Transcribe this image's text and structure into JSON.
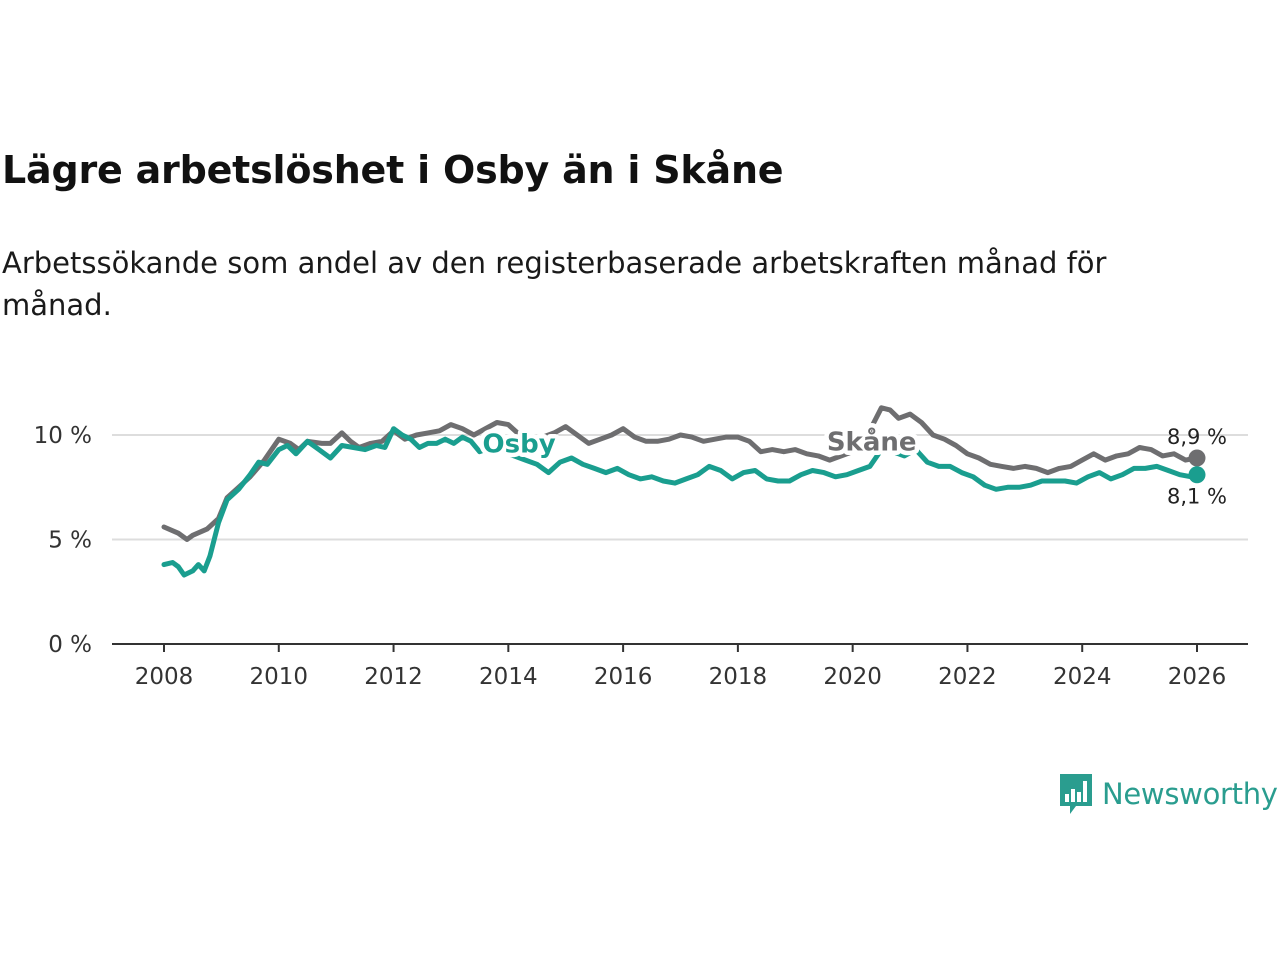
{
  "header": {
    "title": "Lägre arbetslöshet i Osby än i Skåne",
    "subtitle": "Arbetssökande som andel av den registerbaserade arbetskraften månad för månad."
  },
  "logo": {
    "text": "Newsworthy",
    "icon": "bar-chart-speech-bubble-icon"
  },
  "chart_data": {
    "type": "line",
    "title": "Lägre arbetslöshet i Osby än i Skåne",
    "subtitle": "Arbetssökande som andel av den registerbaserade arbetskraften månad för månad.",
    "xlabel": "",
    "ylabel": "",
    "xlim": [
      2007.3,
      2026.9
    ],
    "ylim": [
      0,
      10
    ],
    "x_ticks": [
      2008,
      2010,
      2012,
      2014,
      2016,
      2018,
      2020,
      2022,
      2024,
      2026
    ],
    "x_tick_labels": [
      "2008",
      "2010",
      "2012",
      "2014",
      "2016",
      "2018",
      "2020",
      "2022",
      "2024",
      "2026"
    ],
    "y_ticks": [
      0,
      5,
      10
    ],
    "y_tick_labels": [
      "0 %",
      "5 %",
      "10 %"
    ],
    "grid": true,
    "series": [
      {
        "name": "Skåne",
        "color": "#6e6e70",
        "x": [
          2008.0,
          2008.25,
          2008.4,
          2008.5,
          2008.75,
          2008.95,
          2009.1,
          2009.3,
          2009.5,
          2009.75,
          2010.0,
          2010.2,
          2010.35,
          2010.5,
          2010.75,
          2010.9,
          2011.1,
          2011.25,
          2011.4,
          2011.6,
          2011.8,
          2012.0,
          2012.2,
          2012.4,
          2012.6,
          2012.8,
          2013.0,
          2013.2,
          2013.4,
          2013.6,
          2013.8,
          2014.0,
          2014.2,
          2014.4,
          2014.6,
          2014.8,
          2015.0,
          2015.2,
          2015.4,
          2015.6,
          2015.8,
          2016.0,
          2016.2,
          2016.4,
          2016.6,
          2016.8,
          2017.0,
          2017.2,
          2017.4,
          2017.6,
          2017.8,
          2018.0,
          2018.2,
          2018.4,
          2018.6,
          2018.8,
          2019.0,
          2019.2,
          2019.4,
          2019.6,
          2019.8,
          2020.0,
          2020.2,
          2020.35,
          2020.5,
          2020.65,
          2020.8,
          2021.0,
          2021.2,
          2021.4,
          2021.6,
          2021.8,
          2022.0,
          2022.2,
          2022.4,
          2022.6,
          2022.8,
          2023.0,
          2023.2,
          2023.4,
          2023.6,
          2023.8,
          2024.0,
          2024.2,
          2024.4,
          2024.6,
          2024.8,
          2025.0,
          2025.2,
          2025.4,
          2025.6,
          2025.8,
          2026.0
        ],
        "values": [
          5.6,
          5.3,
          5.0,
          5.2,
          5.5,
          6.0,
          7.0,
          7.5,
          8.0,
          8.8,
          9.8,
          9.6,
          9.3,
          9.7,
          9.6,
          9.6,
          10.1,
          9.7,
          9.4,
          9.6,
          9.7,
          10.2,
          9.8,
          10.0,
          10.1,
          10.2,
          10.5,
          10.3,
          10.0,
          10.3,
          10.6,
          10.5,
          10.0,
          9.7,
          9.9,
          10.1,
          10.4,
          10.0,
          9.6,
          9.8,
          10.0,
          10.3,
          9.9,
          9.7,
          9.7,
          9.8,
          10.0,
          9.9,
          9.7,
          9.8,
          9.9,
          9.9,
          9.7,
          9.2,
          9.3,
          9.2,
          9.3,
          9.1,
          9.0,
          8.8,
          9.0,
          9.2,
          9.6,
          10.5,
          11.3,
          11.2,
          10.8,
          11.0,
          10.6,
          10.0,
          9.8,
          9.5,
          9.1,
          8.9,
          8.6,
          8.5,
          8.4,
          8.5,
          8.4,
          8.2,
          8.4,
          8.5,
          8.8,
          9.1,
          8.8,
          9.0,
          9.1,
          9.4,
          9.3,
          9.0,
          9.1,
          8.8,
          8.9
        ]
      },
      {
        "name": "Osby",
        "color": "#1a9e8f",
        "x": [
          2008.0,
          2008.15,
          2008.25,
          2008.35,
          2008.5,
          2008.6,
          2008.7,
          2008.8,
          2008.95,
          2009.1,
          2009.3,
          2009.5,
          2009.65,
          2009.8,
          2010.0,
          2010.15,
          2010.3,
          2010.5,
          2010.7,
          2010.9,
          2011.1,
          2011.3,
          2011.5,
          2011.7,
          2011.85,
          2012.0,
          2012.15,
          2012.3,
          2012.45,
          2012.6,
          2012.75,
          2012.9,
          2013.05,
          2013.2,
          2013.35,
          2013.5,
          2013.7,
          2013.9,
          2014.1,
          2014.3,
          2014.5,
          2014.7,
          2014.9,
          2015.1,
          2015.3,
          2015.5,
          2015.7,
          2015.9,
          2016.1,
          2016.3,
          2016.5,
          2016.7,
          2016.9,
          2017.1,
          2017.3,
          2017.5,
          2017.7,
          2017.9,
          2018.1,
          2018.3,
          2018.5,
          2018.7,
          2018.9,
          2019.1,
          2019.3,
          2019.5,
          2019.7,
          2019.9,
          2020.1,
          2020.3,
          2020.5,
          2020.7,
          2020.9,
          2021.1,
          2021.3,
          2021.5,
          2021.7,
          2021.9,
          2022.1,
          2022.3,
          2022.5,
          2022.7,
          2022.9,
          2023.1,
          2023.3,
          2023.5,
          2023.7,
          2023.9,
          2024.1,
          2024.3,
          2024.5,
          2024.7,
          2024.9,
          2025.1,
          2025.3,
          2025.5,
          2025.7,
          2025.9,
          2026.0
        ],
        "values": [
          3.8,
          3.9,
          3.7,
          3.3,
          3.5,
          3.8,
          3.5,
          4.2,
          5.8,
          6.9,
          7.4,
          8.1,
          8.7,
          8.6,
          9.3,
          9.5,
          9.1,
          9.7,
          9.3,
          8.9,
          9.5,
          9.4,
          9.3,
          9.5,
          9.4,
          10.3,
          10.0,
          9.8,
          9.4,
          9.6,
          9.6,
          9.8,
          9.6,
          9.9,
          9.7,
          9.2,
          9.4,
          9.2,
          9.0,
          8.8,
          8.6,
          8.2,
          8.7,
          8.9,
          8.6,
          8.4,
          8.2,
          8.4,
          8.1,
          7.9,
          8.0,
          7.8,
          7.7,
          7.9,
          8.1,
          8.5,
          8.3,
          7.9,
          8.2,
          8.3,
          7.9,
          7.8,
          7.8,
          8.1,
          8.3,
          8.2,
          8.0,
          8.1,
          8.3,
          8.5,
          9.3,
          9.2,
          9.0,
          9.3,
          8.7,
          8.5,
          8.5,
          8.2,
          8.0,
          7.6,
          7.4,
          7.5,
          7.5,
          7.6,
          7.8,
          7.8,
          7.8,
          7.7,
          8.0,
          8.2,
          7.9,
          8.1,
          8.4,
          8.4,
          8.5,
          8.3,
          8.1,
          8.0,
          8.1
        ]
      }
    ],
    "series_labels": [
      {
        "series": "Osby",
        "text": "Osby",
        "x": 2013.55,
        "y": 9.6
      },
      {
        "series": "Skåne",
        "text": "Skåne",
        "x": 2019.55,
        "y": 9.7
      }
    ],
    "end_labels": [
      {
        "series": "Skåne",
        "text": "8,9 %",
        "x": 2026.0,
        "y": 8.9,
        "position": "above"
      },
      {
        "series": "Osby",
        "text": "8,1 %",
        "x": 2026.0,
        "y": 8.1,
        "position": "below"
      }
    ]
  }
}
